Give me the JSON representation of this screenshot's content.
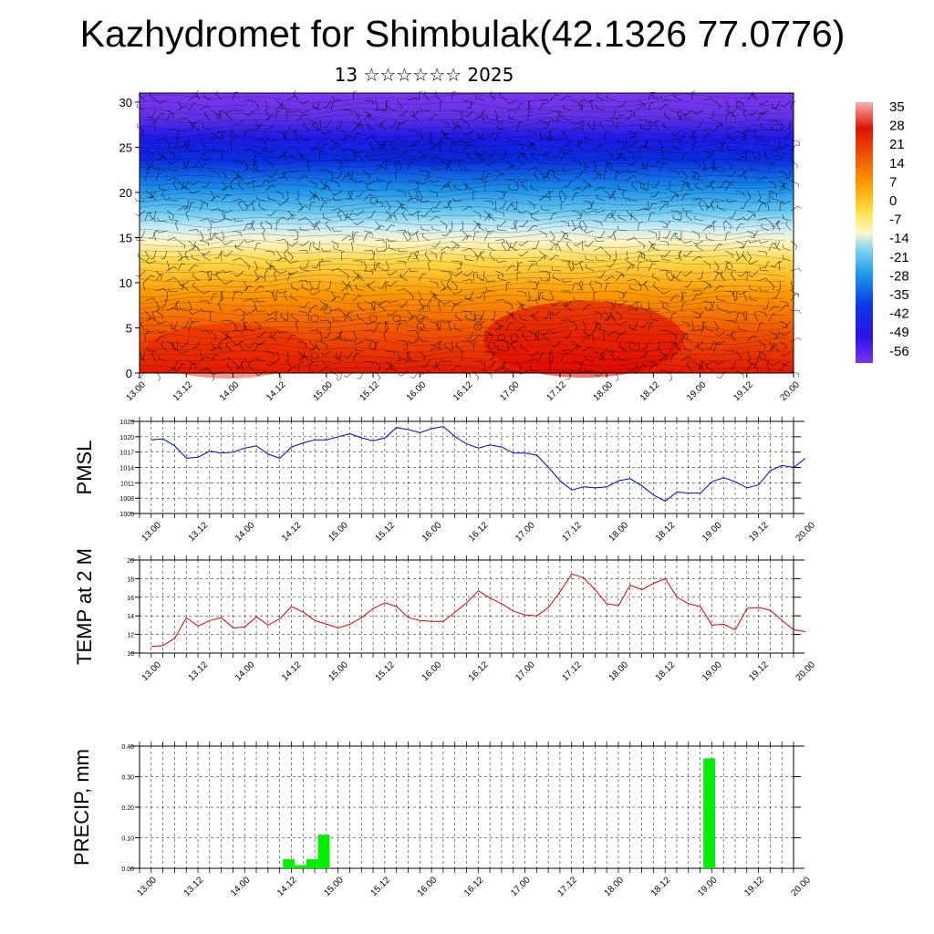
{
  "title": "Kazhydromet for Shimbulak(42.1326 77.0776)",
  "subtitle": "13 ☆☆☆☆☆☆ 2025",
  "colors": {
    "pmsl_line": "#0000cc",
    "temp_line": "#dd0000",
    "precip_bar": "#00ee00",
    "contour_line": "#000000",
    "wind_barb": "#000000"
  },
  "chart_data": [
    {
      "name": "cross_section",
      "type": "heatmap",
      "description_level_axis": "model level",
      "ylim": [
        0,
        31
      ],
      "yticks": [
        "0",
        "5",
        "10",
        "15",
        "20",
        "25",
        "30"
      ],
      "xticks": [
        "13.00",
        "13.12",
        "14.00",
        "14.12",
        "15.00",
        "15.12",
        "16.00",
        "16.12",
        "17.00",
        "17.12",
        "18.00",
        "18.12",
        "19.00",
        "19.12",
        "20.00"
      ],
      "colorbar_labels": [
        "35",
        "28",
        "21",
        "14",
        "7",
        "0",
        "-7",
        "-14",
        "-21",
        "-28",
        "-35",
        "-42",
        "-49",
        "-56"
      ],
      "colorbar_range": [
        -60,
        38
      ],
      "overlays": [
        "temperature contours",
        "wind barbs"
      ]
    },
    {
      "name": "pmsl",
      "type": "line",
      "ylabel": "PMSL",
      "ylim": [
        1005,
        1023
      ],
      "yticks": [
        "1005",
        "1008",
        "1011",
        "1014",
        "1017",
        "1020",
        "1023"
      ],
      "xticks": [
        "13.00",
        "13.12",
        "14.00",
        "14.12",
        "15.00",
        "15.12",
        "16.00",
        "16.12",
        "17.00",
        "17.12",
        "18.00",
        "18.12",
        "19.00",
        "19.12",
        "20.00"
      ],
      "x_step_hours": 3,
      "values": [
        1019.4,
        1019.6,
        1018.2,
        1015.8,
        1016.0,
        1017.2,
        1016.8,
        1017.0,
        1017.8,
        1018.2,
        1016.6,
        1015.8,
        1018.0,
        1018.8,
        1019.4,
        1019.4,
        1020.0,
        1020.6,
        1019.8,
        1019.2,
        1019.8,
        1021.8,
        1021.4,
        1020.8,
        1021.6,
        1022.0,
        1020.0,
        1018.6,
        1017.8,
        1018.4,
        1018.0,
        1016.8,
        1016.8,
        1016.4,
        1014.0,
        1011.4,
        1009.6,
        1010.2,
        1010.0,
        1010.2,
        1011.4,
        1011.8,
        1010.4,
        1008.6,
        1007.4,
        1009.2,
        1009.0,
        1009.0,
        1011.2,
        1012.0,
        1011.2,
        1010.0,
        1010.6,
        1013.4,
        1014.4,
        1014.0,
        1015.8
      ]
    },
    {
      "name": "temp2m",
      "type": "line",
      "ylabel": "TEMP at 2 M",
      "ylim": [
        10,
        20
      ],
      "yticks": [
        "10",
        "12",
        "14",
        "16",
        "18",
        "20"
      ],
      "xticks": [
        "13.00",
        "13.12",
        "14.00",
        "14.12",
        "15.00",
        "15.12",
        "16.00",
        "16.12",
        "17.00",
        "17.12",
        "18.00",
        "18.12",
        "19.00",
        "19.12",
        "20.00"
      ],
      "x_step_hours": 3,
      "values": [
        10.7,
        10.8,
        11.6,
        13.8,
        12.9,
        13.5,
        13.8,
        12.7,
        12.8,
        13.9,
        13.0,
        13.7,
        15.0,
        14.4,
        13.5,
        13.1,
        12.7,
        13.1,
        13.8,
        14.8,
        15.4,
        15.0,
        13.8,
        13.5,
        13.4,
        13.4,
        14.4,
        15.4,
        16.7,
        15.9,
        15.3,
        14.5,
        14.1,
        14.0,
        14.9,
        16.6,
        18.5,
        18.1,
        16.8,
        15.3,
        15.1,
        17.3,
        16.8,
        17.5,
        18.0,
        16.0,
        15.3,
        15.0,
        13.0,
        13.1,
        12.5,
        14.8,
        14.9,
        14.6,
        13.5,
        12.5,
        12.3
      ]
    },
    {
      "name": "precip",
      "type": "bar",
      "ylabel": "PRECIP, mm",
      "ylim": [
        0,
        0.4
      ],
      "yticks": [
        "0.00",
        "0.10",
        "0.20",
        "0.30",
        "0.40"
      ],
      "xticks": [
        "13.00",
        "13.12",
        "14.00",
        "14.12",
        "15.00",
        "15.12",
        "16.00",
        "16.12",
        "17.00",
        "17.12",
        "18.00",
        "18.12",
        "19.00",
        "19.12",
        "20.00"
      ],
      "x_step_hours": 3,
      "bars": [
        {
          "hour": 36,
          "value": 0.03
        },
        {
          "hour": 39,
          "value": 0.01
        },
        {
          "hour": 42,
          "value": 0.03
        },
        {
          "hour": 45,
          "value": 0.11
        },
        {
          "hour": 144,
          "value": 0.36
        }
      ]
    }
  ]
}
